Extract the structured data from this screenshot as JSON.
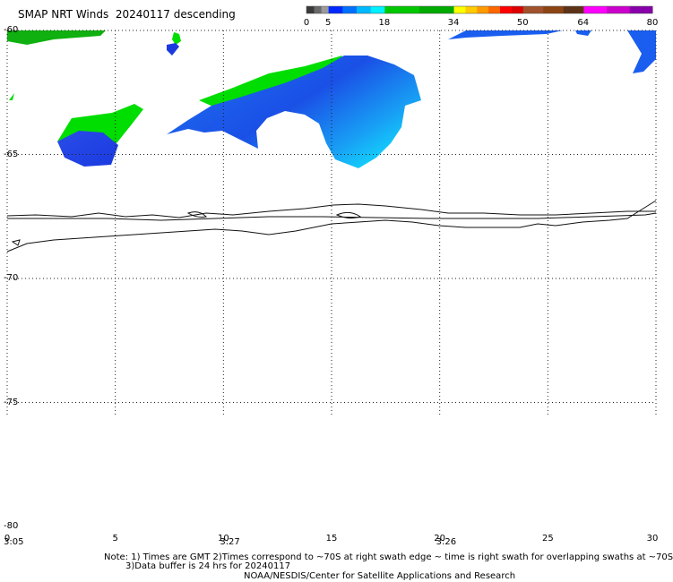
{
  "title": "SMAP NRT Winds  20240117 descending",
  "color_scale": {
    "ticks": [
      {
        "label": "0",
        "value": 0
      },
      {
        "label": "5",
        "value": 5
      },
      {
        "label": "18",
        "value": 18
      },
      {
        "label": "34",
        "value": 34
      },
      {
        "label": "50",
        "value": 50
      },
      {
        "label": "64",
        "value": 64
      },
      {
        "label": "80",
        "value": 80
      }
    ],
    "segments": [
      {
        "from": 0,
        "to": 5,
        "colors": [
          "#3a3a3a",
          "#6a6a6a",
          "#9a9a9a"
        ]
      },
      {
        "from": 5,
        "to": 18,
        "colors": [
          "#0028ff",
          "#0070ff",
          "#00b8ff",
          "#00f0ff"
        ]
      },
      {
        "from": 18,
        "to": 34,
        "colors": [
          "#00c800",
          "#00aa00"
        ]
      },
      {
        "from": 34,
        "to": 50,
        "colors": [
          "#ffff00",
          "#ffcc00",
          "#ff9900",
          "#ff6600",
          "#ff0000",
          "#dd0000"
        ]
      },
      {
        "from": 50,
        "to": 64,
        "colors": [
          "#a0522d",
          "#8b4513",
          "#5c3317"
        ]
      },
      {
        "from": 64,
        "to": 80,
        "colors": [
          "#ff00ff",
          "#cc00cc",
          "#8800aa"
        ]
      }
    ]
  },
  "map": {
    "lat_labels": [
      {
        "label": "-60",
        "value": -60
      },
      {
        "label": "-65",
        "value": -65
      },
      {
        "label": "-70",
        "value": -70
      },
      {
        "label": "-75",
        "value": -75
      },
      {
        "label": "-80",
        "value": -80
      }
    ],
    "lon_labels": [
      {
        "label": "0",
        "value": 0
      },
      {
        "label": "5",
        "value": 5
      },
      {
        "label": "10",
        "value": 10
      },
      {
        "label": "15",
        "value": 15
      },
      {
        "label": "20",
        "value": 20
      },
      {
        "label": "25",
        "value": 25
      },
      {
        "label": "30",
        "value": 30
      }
    ],
    "time_labels": [
      {
        "label": "3:05",
        "lon": 0
      },
      {
        "label": "3:27",
        "lon": 10
      },
      {
        "label": "3:26",
        "lon": 20
      }
    ]
  },
  "notes": {
    "line1": "Note: 1) Times are GMT 2)Times correspond to ~70S at right swath edge ~ time is right swath for overlapping swaths at ~70S",
    "line2": "3)Data buffer is 24 hrs for 20240117",
    "line3": "NOAA/NESDIS/Center for Satellite Applications and Research"
  }
}
